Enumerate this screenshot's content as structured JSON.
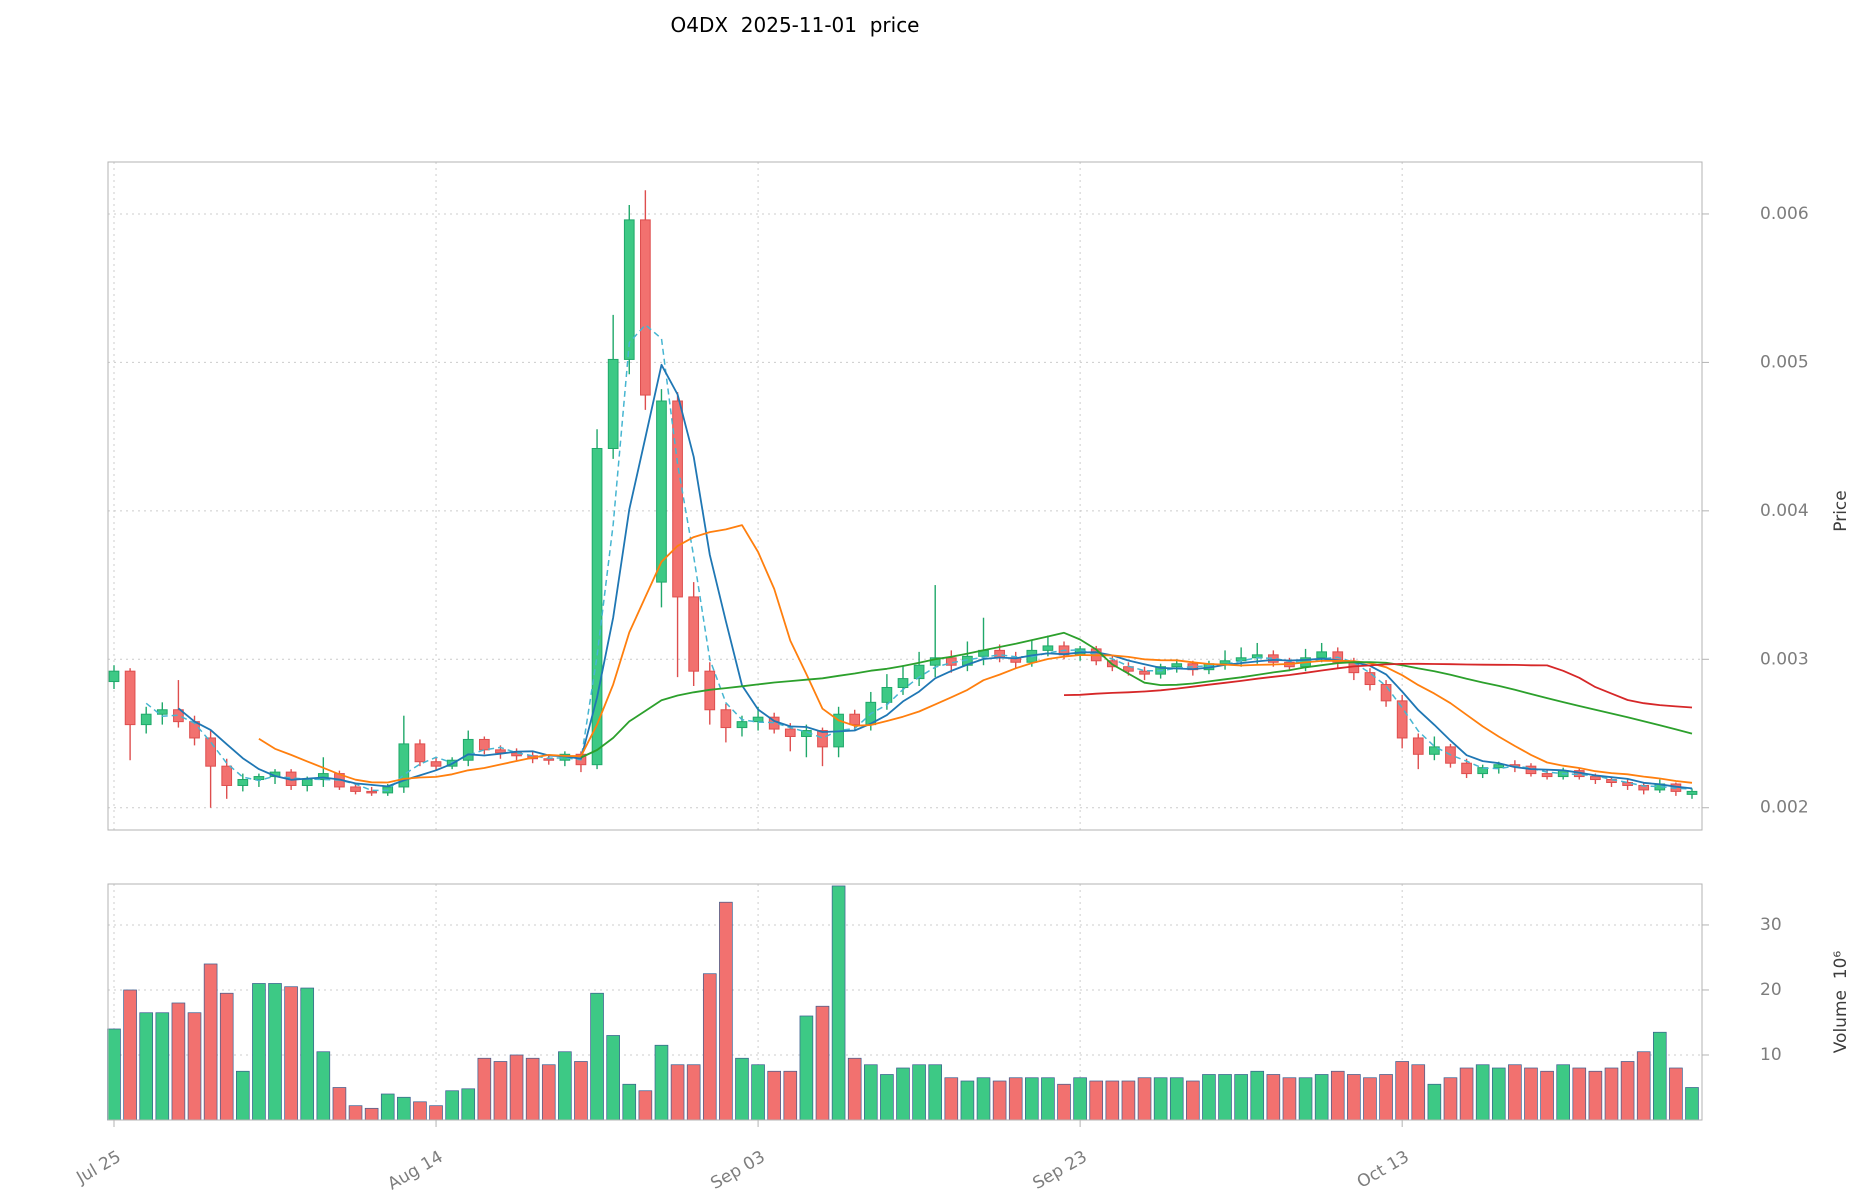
{
  "figure": {
    "title": "O4DX  2025-11-01  price"
  },
  "chart_data": {
    "type": "candlestick",
    "title": "O4DX  2025-11-01  price",
    "x_axis": {
      "tick_labels": [
        "Jul 25",
        "Aug 14",
        "Sep 03",
        "Sep 23",
        "Oct 13"
      ],
      "tick_indices": [
        0,
        20,
        40,
        60,
        80
      ]
    },
    "price_axis": {
      "label": "Price",
      "tick_values": [
        0.002,
        0.003,
        0.004,
        0.005,
        0.006
      ],
      "tick_labels": [
        "0.002",
        "0.003",
        "0.004",
        "0.005",
        "0.006"
      ],
      "range": [
        0.00185,
        0.00635
      ]
    },
    "volume_axis": {
      "label": "Volume  10⁶",
      "tick_values": [
        10,
        20,
        30
      ],
      "tick_labels": [
        "10",
        "20",
        "30"
      ],
      "range": [
        0,
        36.3
      ]
    },
    "style": {
      "up_color": "#3dc985",
      "up_edge": "#1fa86a",
      "down_color": "#f2716f",
      "down_edge": "#de4e4e",
      "volume_bar_edge": "#3a5d8f",
      "grid_color": "#cccccc",
      "spine_color": "#b3b3b3",
      "tick_text_color": "#7d7d7d",
      "ma_fast_color": "#1f77b4",
      "ma_mid_color": "#ff7f0e",
      "ma_slow_color": "#2ca02c",
      "ma_slowest_color": "#d62728",
      "ma_dashed_color": "#46b5d1"
    },
    "overlays": [
      {
        "name": "sma-3",
        "period": 3,
        "color": "#46b5d1",
        "dashed": true
      },
      {
        "name": "sma-5",
        "period": 5,
        "color": "#1f77b4",
        "dashed": false
      },
      {
        "name": "sma-10",
        "period": 10,
        "color": "#ff7f0e",
        "dashed": false
      },
      {
        "name": "sma-30",
        "period": 30,
        "color": "#2ca02c",
        "dashed": false
      },
      {
        "name": "sma-60",
        "period": 60,
        "color": "#d62728",
        "dashed": false
      }
    ],
    "candles": {
      "dates": [
        "2025-07-25",
        "2025-07-26",
        "2025-07-27",
        "2025-07-28",
        "2025-07-29",
        "2025-07-30",
        "2025-07-31",
        "2025-08-01",
        "2025-08-02",
        "2025-08-03",
        "2025-08-04",
        "2025-08-05",
        "2025-08-06",
        "2025-08-07",
        "2025-08-08",
        "2025-08-09",
        "2025-08-10",
        "2025-08-11",
        "2025-08-12",
        "2025-08-13",
        "2025-08-14",
        "2025-08-15",
        "2025-08-16",
        "2025-08-17",
        "2025-08-18",
        "2025-08-19",
        "2025-08-20",
        "2025-08-21",
        "2025-08-22",
        "2025-08-23",
        "2025-08-24",
        "2025-08-25",
        "2025-08-26",
        "2025-08-27",
        "2025-08-28",
        "2025-08-29",
        "2025-08-30",
        "2025-08-31",
        "2025-09-01",
        "2025-09-02",
        "2025-09-03",
        "2025-09-04",
        "2025-09-05",
        "2025-09-06",
        "2025-09-07",
        "2025-09-08",
        "2025-09-09",
        "2025-09-10",
        "2025-09-11",
        "2025-09-12",
        "2025-09-13",
        "2025-09-14",
        "2025-09-15",
        "2025-09-16",
        "2025-09-17",
        "2025-09-18",
        "2025-09-19",
        "2025-09-20",
        "2025-09-21",
        "2025-09-22",
        "2025-09-23",
        "2025-09-24",
        "2025-09-25",
        "2025-09-26",
        "2025-09-27",
        "2025-09-28",
        "2025-09-29",
        "2025-09-30",
        "2025-10-01",
        "2025-10-02",
        "2025-10-03",
        "2025-10-04",
        "2025-10-05",
        "2025-10-06",
        "2025-10-07",
        "2025-10-08",
        "2025-10-09",
        "2025-10-10",
        "2025-10-11",
        "2025-10-12",
        "2025-10-13",
        "2025-10-14",
        "2025-10-15",
        "2025-10-16",
        "2025-10-17",
        "2025-10-18",
        "2025-10-19",
        "2025-10-20",
        "2025-10-21",
        "2025-10-22",
        "2025-10-23",
        "2025-10-24",
        "2025-10-25",
        "2025-10-26",
        "2025-10-27",
        "2025-10-28",
        "2025-10-29",
        "2025-10-30",
        "2025-10-31"
      ],
      "open": [
        0.00285,
        0.00292,
        0.00256,
        0.00263,
        0.00266,
        0.00258,
        0.00247,
        0.00228,
        0.00215,
        0.00219,
        0.00221,
        0.00224,
        0.00215,
        0.00219,
        0.00223,
        0.00214,
        0.00211,
        0.0021,
        0.00214,
        0.00243,
        0.00231,
        0.00228,
        0.00232,
        0.00246,
        0.00239,
        0.00237,
        0.00235,
        0.00233,
        0.00232,
        0.00236,
        0.00229,
        0.00442,
        0.00502,
        0.00596,
        0.00352,
        0.00474,
        0.00342,
        0.00292,
        0.00266,
        0.00254,
        0.00258,
        0.00261,
        0.00253,
        0.00248,
        0.00252,
        0.00241,
        0.00263,
        0.00256,
        0.00271,
        0.00281,
        0.00287,
        0.00296,
        0.00301,
        0.00296,
        0.00302,
        0.00306,
        0.00301,
        0.00298,
        0.00306,
        0.00309,
        0.00303,
        0.00307,
        0.00299,
        0.00295,
        0.00292,
        0.0029,
        0.00295,
        0.00297,
        0.00293,
        0.00297,
        0.00299,
        0.00301,
        0.00303,
        0.00298,
        0.00295,
        0.00301,
        0.00305,
        0.00298,
        0.00291,
        0.00283,
        0.00272,
        0.00247,
        0.00236,
        0.00241,
        0.0023,
        0.00223,
        0.00227,
        0.00229,
        0.00228,
        0.00223,
        0.00221,
        0.00225,
        0.00221,
        0.00219,
        0.00217,
        0.00215,
        0.00212,
        0.00216,
        0.00209
      ],
      "high": [
        0.00296,
        0.00294,
        0.00268,
        0.00271,
        0.00286,
        0.00262,
        0.00252,
        0.00233,
        0.00223,
        0.00223,
        0.00226,
        0.00226,
        0.00221,
        0.00234,
        0.00225,
        0.00217,
        0.00214,
        0.00216,
        0.00262,
        0.00246,
        0.00234,
        0.00234,
        0.00252,
        0.00248,
        0.00242,
        0.0024,
        0.00238,
        0.00236,
        0.00238,
        0.00238,
        0.00455,
        0.00532,
        0.00606,
        0.00616,
        0.00482,
        0.0048,
        0.00352,
        0.00298,
        0.0027,
        0.00262,
        0.00268,
        0.00264,
        0.00257,
        0.00256,
        0.00254,
        0.00268,
        0.00266,
        0.00278,
        0.0029,
        0.00296,
        0.00305,
        0.0035,
        0.00306,
        0.00312,
        0.00328,
        0.0031,
        0.00305,
        0.00313,
        0.00316,
        0.00312,
        0.00309,
        0.00309,
        0.00302,
        0.00298,
        0.00295,
        0.00297,
        0.003,
        0.00299,
        0.00299,
        0.00306,
        0.00308,
        0.00311,
        0.00306,
        0.00301,
        0.00307,
        0.00311,
        0.00308,
        0.00301,
        0.00294,
        0.00286,
        0.00276,
        0.0025,
        0.00248,
        0.00243,
        0.00233,
        0.00229,
        0.00231,
        0.00232,
        0.0023,
        0.00226,
        0.00227,
        0.00227,
        0.00223,
        0.00221,
        0.00219,
        0.00217,
        0.00219,
        0.00217,
        0.00213
      ],
      "low": [
        0.0028,
        0.00232,
        0.0025,
        0.00256,
        0.00254,
        0.00242,
        0.002,
        0.00206,
        0.00211,
        0.00214,
        0.00216,
        0.00212,
        0.00211,
        0.00214,
        0.00212,
        0.00209,
        0.00208,
        0.00208,
        0.0021,
        0.00228,
        0.00225,
        0.00226,
        0.00228,
        0.00236,
        0.00233,
        0.00232,
        0.0023,
        0.00229,
        0.00228,
        0.00224,
        0.00226,
        0.00435,
        0.00492,
        0.00468,
        0.00335,
        0.00288,
        0.00282,
        0.00256,
        0.00244,
        0.00248,
        0.00252,
        0.0025,
        0.00238,
        0.00234,
        0.00228,
        0.00234,
        0.00252,
        0.00252,
        0.00266,
        0.00276,
        0.00282,
        0.00288,
        0.00291,
        0.00292,
        0.00296,
        0.00298,
        0.00294,
        0.00295,
        0.00302,
        0.003,
        0.00299,
        0.00296,
        0.00292,
        0.00289,
        0.00286,
        0.00287,
        0.00291,
        0.00289,
        0.0029,
        0.00293,
        0.00295,
        0.00297,
        0.00295,
        0.00292,
        0.00292,
        0.00298,
        0.00294,
        0.00286,
        0.00279,
        0.00268,
        0.0024,
        0.00226,
        0.00232,
        0.00227,
        0.0022,
        0.0022,
        0.00223,
        0.00224,
        0.00221,
        0.00219,
        0.00219,
        0.00219,
        0.00216,
        0.00214,
        0.00212,
        0.00209,
        0.0021,
        0.00208,
        0.00206
      ],
      "close": [
        0.00292,
        0.00256,
        0.00263,
        0.00266,
        0.00258,
        0.00247,
        0.00228,
        0.00215,
        0.00219,
        0.00221,
        0.00224,
        0.00215,
        0.00219,
        0.00223,
        0.00214,
        0.00211,
        0.0021,
        0.00214,
        0.00243,
        0.00231,
        0.00228,
        0.00232,
        0.00246,
        0.00239,
        0.00237,
        0.00235,
        0.00233,
        0.00232,
        0.00236,
        0.00229,
        0.00442,
        0.00502,
        0.00596,
        0.00478,
        0.00474,
        0.00342,
        0.00292,
        0.00266,
        0.00254,
        0.00258,
        0.00261,
        0.00253,
        0.00248,
        0.00252,
        0.00241,
        0.00263,
        0.00256,
        0.00271,
        0.00281,
        0.00287,
        0.00296,
        0.00301,
        0.00296,
        0.00302,
        0.00306,
        0.00301,
        0.00298,
        0.00306,
        0.00309,
        0.00303,
        0.00307,
        0.00299,
        0.00295,
        0.00292,
        0.0029,
        0.00295,
        0.00297,
        0.00293,
        0.00297,
        0.00299,
        0.00301,
        0.00303,
        0.00298,
        0.00295,
        0.00301,
        0.00305,
        0.00298,
        0.00291,
        0.00283,
        0.00272,
        0.00247,
        0.00236,
        0.00241,
        0.0023,
        0.00223,
        0.00227,
        0.00229,
        0.00228,
        0.00223,
        0.00221,
        0.00225,
        0.00221,
        0.00219,
        0.00217,
        0.00215,
        0.00212,
        0.00216,
        0.00211,
        0.00211
      ],
      "volume_millions": [
        14,
        20,
        16.5,
        16.5,
        18,
        16.5,
        24,
        19.5,
        7.5,
        21,
        21,
        20.5,
        20.3,
        10.5,
        5,
        2.2,
        1.8,
        4,
        3.5,
        2.8,
        2.2,
        4.5,
        4.8,
        9.5,
        9,
        10,
        9.5,
        8.5,
        10.5,
        9,
        19.5,
        13,
        5.5,
        4.5,
        11.5,
        8.5,
        8.5,
        22.5,
        33.5,
        9.5,
        8.5,
        7.5,
        7.5,
        16,
        17.5,
        36,
        9.5,
        8.5,
        7,
        8,
        8.5,
        8.5,
        6.5,
        6,
        6.5,
        6,
        6.5,
        6.5,
        6.5,
        5.5,
        6.5,
        6,
        6,
        6,
        6.5,
        6.5,
        6.5,
        6,
        7,
        7,
        7,
        7.5,
        7,
        6.5,
        6.5,
        7,
        7.5,
        7,
        6.5,
        7,
        9,
        8.5,
        5.5,
        6.5,
        8,
        8.5,
        8,
        8.5,
        8,
        7.5,
        8.5,
        8,
        7.5,
        8,
        9,
        10.5,
        13.5,
        8,
        5
      ]
    }
  }
}
